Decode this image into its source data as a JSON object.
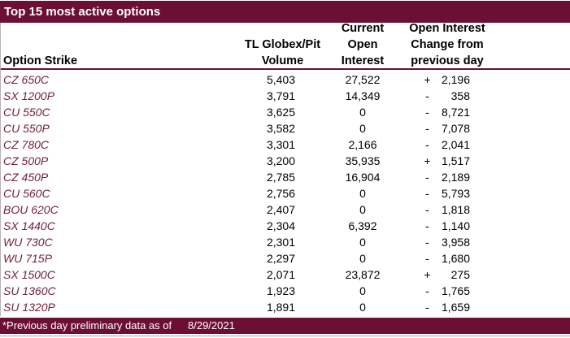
{
  "title": "Top 15 most active options",
  "colors": {
    "maroon": "#6B0F35",
    "option_text": "#722038",
    "header_text": "#000000",
    "body_text": "#000000"
  },
  "columns": {
    "option_strike": "Option Strike",
    "volume_line1": "TL Globex/Pit",
    "volume_line2": "Volume",
    "oi_line1": "Current",
    "oi_line2": "Open",
    "oi_line3": "Interest",
    "change_line1": "Open Interest",
    "change_line2": "Change from",
    "change_line3": "previous day"
  },
  "rows": [
    {
      "strike": "CZ 650C",
      "volume": "5,403",
      "open_interest": "27,522",
      "sign": "+",
      "change": "2,196"
    },
    {
      "strike": "SX 1200P",
      "volume": "3,791",
      "open_interest": "14,349",
      "sign": "-",
      "change": "358"
    },
    {
      "strike": "CU 550C",
      "volume": "3,625",
      "open_interest": "0",
      "sign": "-",
      "change": "8,721"
    },
    {
      "strike": "CU 550P",
      "volume": "3,582",
      "open_interest": "0",
      "sign": "-",
      "change": "7,078"
    },
    {
      "strike": "CZ 780C",
      "volume": "3,301",
      "open_interest": "2,166",
      "sign": "-",
      "change": "2,041"
    },
    {
      "strike": "CZ 500P",
      "volume": "3,200",
      "open_interest": "35,935",
      "sign": "+",
      "change": "1,517"
    },
    {
      "strike": "CZ 450P",
      "volume": "2,785",
      "open_interest": "16,904",
      "sign": "-",
      "change": "2,189"
    },
    {
      "strike": "CU 560C",
      "volume": "2,756",
      "open_interest": "0",
      "sign": "-",
      "change": "5,793"
    },
    {
      "strike": "BOU 620C",
      "volume": "2,407",
      "open_interest": "0",
      "sign": "-",
      "change": "1,818"
    },
    {
      "strike": "SX 1440C",
      "volume": "2,304",
      "open_interest": "6,392",
      "sign": "-",
      "change": "1,140"
    },
    {
      "strike": "WU 730C",
      "volume": "2,301",
      "open_interest": "0",
      "sign": "-",
      "change": "3,958"
    },
    {
      "strike": "WU 715P",
      "volume": "2,297",
      "open_interest": "0",
      "sign": "-",
      "change": "1,680"
    },
    {
      "strike": "SX 1500C",
      "volume": "2,071",
      "open_interest": "23,872",
      "sign": "+",
      "change": "275"
    },
    {
      "strike": "SU 1360C",
      "volume": "1,923",
      "open_interest": "0",
      "sign": "-",
      "change": "1,765"
    },
    {
      "strike": "SU 1320P",
      "volume": "1,891",
      "open_interest": "0",
      "sign": "-",
      "change": "1,659"
    }
  ],
  "footer": {
    "note": "*Previous day preliminary data as of",
    "date": "8/29/2021"
  }
}
